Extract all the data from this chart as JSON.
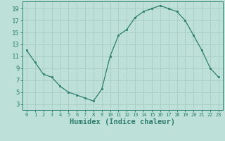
{
  "x": [
    0,
    1,
    2,
    3,
    4,
    5,
    6,
    7,
    8,
    9,
    10,
    11,
    12,
    13,
    14,
    15,
    16,
    17,
    18,
    19,
    20,
    21,
    22,
    23
  ],
  "y": [
    12,
    10,
    8,
    7.5,
    6,
    5,
    4.5,
    4,
    3.5,
    5.5,
    11,
    14.5,
    15.5,
    17.5,
    18.5,
    19,
    19.5,
    19,
    18.5,
    17,
    14.5,
    12,
    9,
    7.5
  ],
  "line_color": "#2e7d6e",
  "marker_color": "#2e7d6e",
  "bg_color": "#bde0d8",
  "grid_color": "#a8ccc4",
  "axis_label_color": "#2e7d6e",
  "tick_color": "#2e7d6e",
  "xlabel": "Humidex (Indice chaleur)",
  "xlim": [
    -0.5,
    23.5
  ],
  "ylim": [
    2,
    20.2
  ],
  "yticks": [
    3,
    5,
    7,
    9,
    11,
    13,
    15,
    17,
    19
  ],
  "xticks": [
    0,
    1,
    2,
    3,
    4,
    5,
    6,
    7,
    8,
    9,
    10,
    11,
    12,
    13,
    14,
    15,
    16,
    17,
    18,
    19,
    20,
    21,
    22,
    23
  ]
}
